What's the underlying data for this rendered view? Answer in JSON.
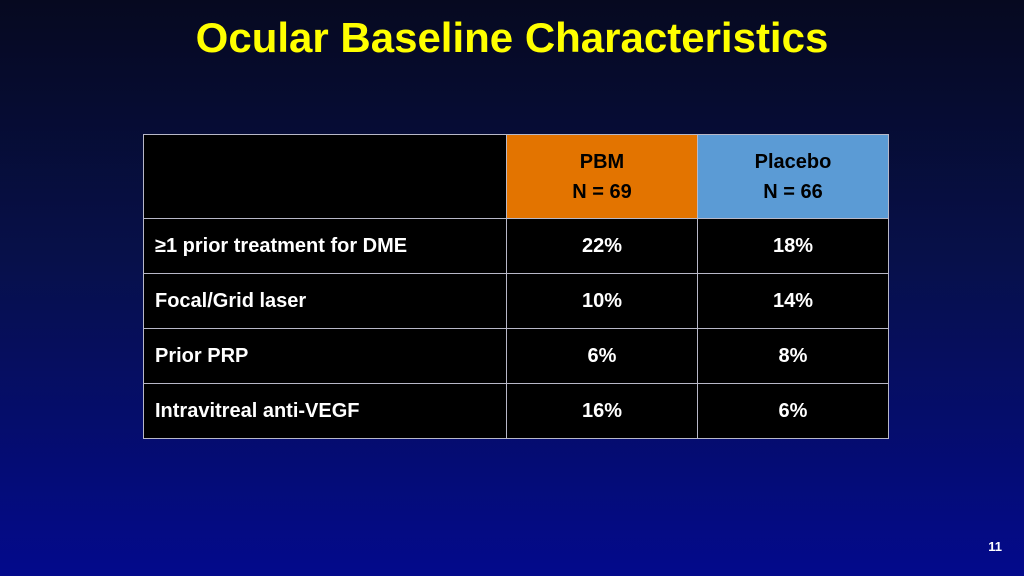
{
  "slide": {
    "title": "Ocular Baseline Characteristics",
    "page_number": "11"
  },
  "table": {
    "columns": [
      {
        "name": "PBM",
        "n": "N = 69",
        "color": "#e37400"
      },
      {
        "name": "Placebo",
        "n": "N = 66",
        "color": "#5b9bd5"
      }
    ],
    "rows": [
      {
        "label": "≥1 prior treatment for DME",
        "pbm": "22%",
        "placebo": "18%"
      },
      {
        "label": "Focal/Grid laser",
        "pbm": "10%",
        "placebo": "14%"
      },
      {
        "label": "Prior PRP",
        "pbm": "6%",
        "placebo": "8%"
      },
      {
        "label": "Intravitreal anti-VEGF",
        "pbm": "16%",
        "placebo": "6%"
      }
    ]
  }
}
